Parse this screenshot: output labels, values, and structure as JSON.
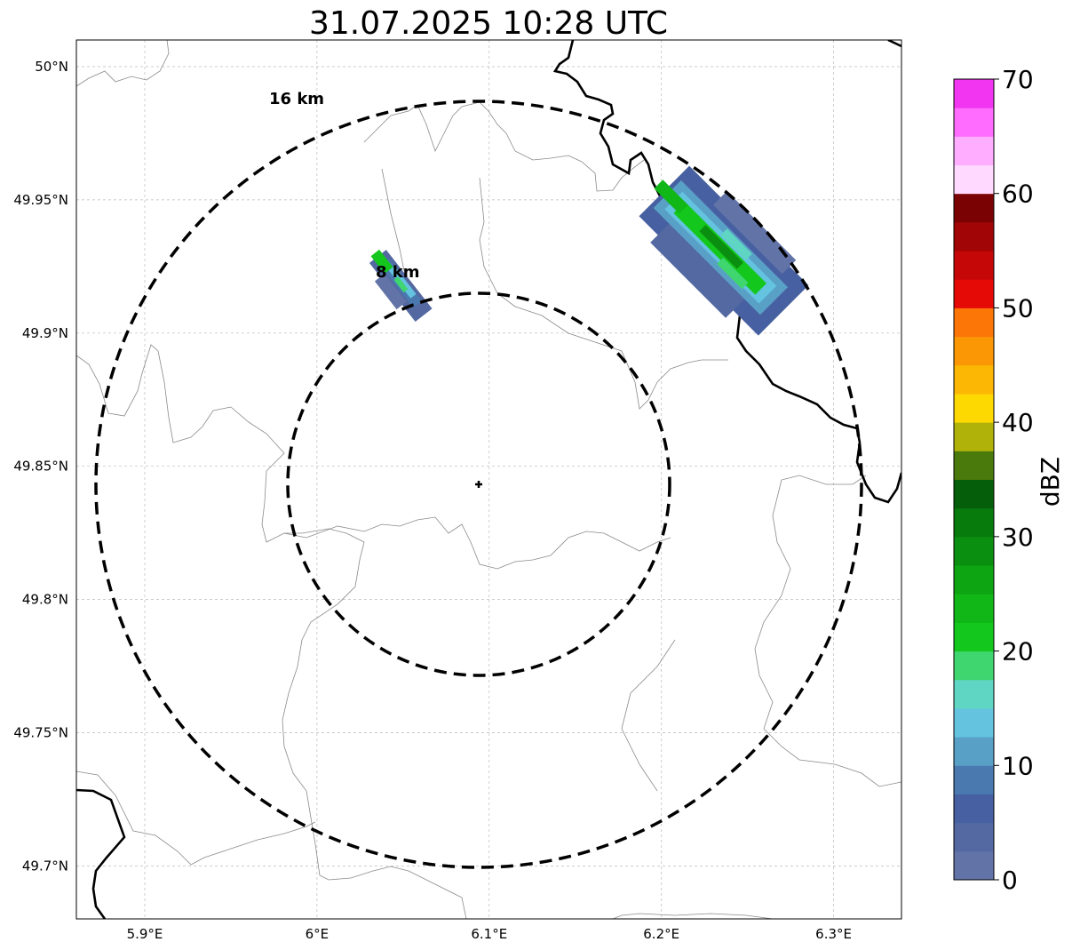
{
  "title": "31.07.2025 10:28 UTC",
  "map": {
    "lon_ticks": [
      {
        "value": 5.9,
        "label": "5.9°E"
      },
      {
        "value": 6.0,
        "label": "6°E"
      },
      {
        "value": 6.1,
        "label": "6.1°E"
      },
      {
        "value": 6.2,
        "label": "6.2°E"
      },
      {
        "value": 6.3,
        "label": "6.3°E"
      }
    ],
    "lat_ticks": [
      {
        "value": 50.0,
        "label": "50°N"
      },
      {
        "value": 49.95,
        "label": "49.95°N"
      },
      {
        "value": 49.9,
        "label": "49.9°N"
      },
      {
        "value": 49.85,
        "label": "49.85°N"
      },
      {
        "value": 49.8,
        "label": "49.8°N"
      },
      {
        "value": 49.75,
        "label": "49.75°N"
      },
      {
        "value": 49.7,
        "label": "49.7°N"
      }
    ],
    "radar_site": {
      "lon": 6.095,
      "lat": 49.843
    },
    "range_rings": [
      {
        "label": "8 km",
        "radius_km": 8
      },
      {
        "label": "16 km",
        "radius_km": 16
      }
    ]
  },
  "colorbar": {
    "label": "dBZ",
    "tick_labels": [
      "0",
      "10",
      "20",
      "30",
      "40",
      "50",
      "60",
      "70"
    ],
    "colors": [
      "#6273a7",
      "#5469a2",
      "#4760a1",
      "#4a79b0",
      "#59a0c7",
      "#64c3de",
      "#5fd6c4",
      "#3fd56f",
      "#13c71c",
      "#10b716",
      "#0ea513",
      "#0b8f10",
      "#087b0d",
      "#055f0a",
      "#4a790c",
      "#b0b20a",
      "#fdd801",
      "#fbb703",
      "#fb9705",
      "#fc7607",
      "#e60a07",
      "#c50707",
      "#a10505",
      "#7b0202",
      "#ffd9ff",
      "#ffadff",
      "#ff6cff",
      "#f135f1"
    ]
  }
}
